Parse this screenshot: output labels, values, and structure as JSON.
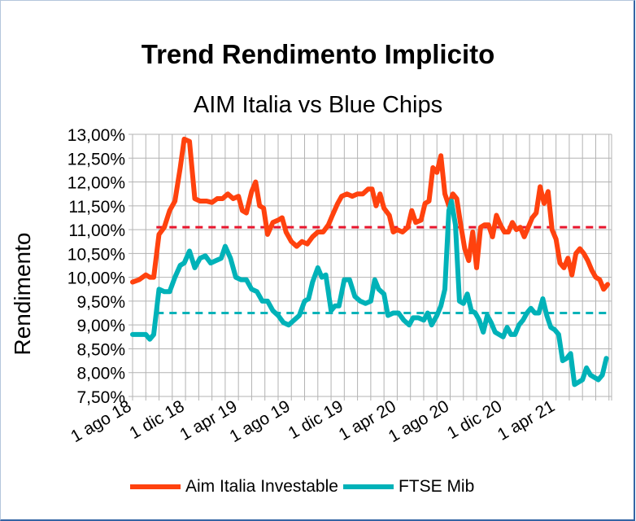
{
  "chart_data": {
    "type": "line",
    "title": "Trend Rendimento Implicito",
    "subtitle": "AIM Italia vs Blue Chips",
    "xlabel": "",
    "ylabel": "Rendimento",
    "ylim": [
      7.5,
      13.0
    ],
    "y_ticks": [
      "13,00%",
      "12,50%",
      "12,00%",
      "11,50%",
      "11,00%",
      "10,50%",
      "10,00%",
      "9,50%",
      "9,00%",
      "8,50%",
      "8,00%",
      "7,50%"
    ],
    "x_ticks": [
      "1 ago 18",
      "1 dic 18",
      "1 apr 19",
      "1 ago 19",
      "1 dic 19",
      "1 apr 20",
      "1 ago 20",
      "1 dic 20",
      "1 apr 21"
    ],
    "x_range_months_from_aug_2018": [
      0,
      36.2
    ],
    "grid": true,
    "legend_position": "bottom",
    "x_unit": "months since 1 ago 18",
    "series": [
      {
        "name": "Aim Italia Investable",
        "color": "#ff420e",
        "points": [
          [
            0,
            9.9
          ],
          [
            0.5,
            9.95
          ],
          [
            1,
            10.05
          ],
          [
            1.3,
            10.0
          ],
          [
            1.6,
            10.0
          ],
          [
            2,
            10.9
          ],
          [
            2.4,
            11.05
          ],
          [
            2.8,
            11.4
          ],
          [
            3.2,
            11.6
          ],
          [
            3.6,
            12.3
          ],
          [
            3.9,
            12.9
          ],
          [
            4.3,
            12.85
          ],
          [
            4.7,
            11.65
          ],
          [
            5.1,
            11.6
          ],
          [
            5.6,
            11.6
          ],
          [
            6.0,
            11.57
          ],
          [
            6.4,
            11.65
          ],
          [
            6.8,
            11.65
          ],
          [
            7.2,
            11.75
          ],
          [
            7.6,
            11.65
          ],
          [
            8.0,
            11.7
          ],
          [
            8.3,
            11.4
          ],
          [
            8.6,
            11.35
          ],
          [
            9.0,
            11.8
          ],
          [
            9.3,
            12.0
          ],
          [
            9.6,
            11.5
          ],
          [
            9.9,
            11.45
          ],
          [
            10.2,
            10.9
          ],
          [
            10.6,
            11.15
          ],
          [
            11.0,
            11.2
          ],
          [
            11.3,
            11.25
          ],
          [
            11.6,
            10.95
          ],
          [
            12.0,
            10.75
          ],
          [
            12.4,
            10.65
          ],
          [
            12.8,
            10.75
          ],
          [
            13.2,
            10.7
          ],
          [
            13.6,
            10.85
          ],
          [
            14.0,
            10.95
          ],
          [
            14.4,
            10.95
          ],
          [
            14.8,
            11.1
          ],
          [
            15.1,
            11.3
          ],
          [
            15.5,
            11.55
          ],
          [
            15.8,
            11.7
          ],
          [
            16.2,
            11.75
          ],
          [
            16.6,
            11.7
          ],
          [
            17.0,
            11.75
          ],
          [
            17.4,
            11.75
          ],
          [
            17.8,
            11.85
          ],
          [
            18.1,
            11.85
          ],
          [
            18.4,
            11.5
          ],
          [
            18.7,
            11.75
          ],
          [
            19.0,
            11.45
          ],
          [
            19.4,
            11.3
          ],
          [
            19.7,
            10.95
          ],
          [
            20.0,
            11.0
          ],
          [
            20.4,
            10.95
          ],
          [
            20.8,
            11.05
          ],
          [
            21.1,
            11.4
          ],
          [
            21.4,
            11.15
          ],
          [
            21.8,
            11.2
          ],
          [
            22.1,
            11.55
          ],
          [
            22.4,
            11.6
          ],
          [
            22.7,
            12.3
          ],
          [
            23.0,
            12.2
          ],
          [
            23.3,
            12.55
          ],
          [
            23.6,
            11.75
          ],
          [
            23.9,
            11.5
          ],
          [
            24.2,
            11.75
          ],
          [
            24.5,
            11.65
          ],
          [
            24.8,
            11.1
          ],
          [
            25.1,
            10.6
          ],
          [
            25.4,
            10.35
          ],
          [
            25.7,
            10.95
          ],
          [
            26.0,
            10.2
          ],
          [
            26.3,
            11.05
          ],
          [
            26.6,
            11.1
          ],
          [
            26.9,
            11.1
          ],
          [
            27.2,
            10.85
          ],
          [
            27.5,
            11.3
          ],
          [
            27.8,
            11.1
          ],
          [
            28.1,
            10.95
          ],
          [
            28.4,
            10.95
          ],
          [
            28.7,
            11.15
          ],
          [
            29.0,
            11.0
          ],
          [
            29.3,
            11.05
          ],
          [
            29.6,
            10.85
          ],
          [
            29.9,
            11.05
          ],
          [
            30.2,
            11.25
          ],
          [
            30.5,
            11.35
          ],
          [
            30.8,
            11.9
          ],
          [
            31.1,
            11.55
          ],
          [
            31.4,
            11.8
          ],
          [
            31.7,
            11.0
          ],
          [
            32.0,
            10.8
          ],
          [
            32.3,
            10.3
          ],
          [
            32.6,
            10.2
          ],
          [
            32.9,
            10.4
          ],
          [
            33.2,
            10.05
          ],
          [
            33.5,
            10.5
          ],
          [
            33.8,
            10.6
          ],
          [
            34.1,
            10.5
          ],
          [
            34.4,
            10.35
          ],
          [
            34.7,
            10.15
          ],
          [
            35.0,
            10.0
          ],
          [
            35.3,
            9.95
          ],
          [
            35.6,
            9.75
          ],
          [
            35.9,
            9.85
          ]
        ]
      },
      {
        "name": "FTSE Mib",
        "color": "#00b2b8",
        "points": [
          [
            0,
            8.8
          ],
          [
            0.5,
            8.8
          ],
          [
            1,
            8.8
          ],
          [
            1.3,
            8.7
          ],
          [
            1.6,
            8.8
          ],
          [
            2,
            9.75
          ],
          [
            2.4,
            9.7
          ],
          [
            2.8,
            9.7
          ],
          [
            3.2,
            10.0
          ],
          [
            3.6,
            10.25
          ],
          [
            3.9,
            10.3
          ],
          [
            4.3,
            10.55
          ],
          [
            4.7,
            10.2
          ],
          [
            5.1,
            10.4
          ],
          [
            5.5,
            10.45
          ],
          [
            5.9,
            10.3
          ],
          [
            6.3,
            10.35
          ],
          [
            6.7,
            10.4
          ],
          [
            7.0,
            10.65
          ],
          [
            7.4,
            10.4
          ],
          [
            7.8,
            10.0
          ],
          [
            8.2,
            9.95
          ],
          [
            8.6,
            9.95
          ],
          [
            9.0,
            9.75
          ],
          [
            9.4,
            9.7
          ],
          [
            9.8,
            9.5
          ],
          [
            10.2,
            9.5
          ],
          [
            10.6,
            9.3
          ],
          [
            11.0,
            9.2
          ],
          [
            11.4,
            9.05
          ],
          [
            11.8,
            9.0
          ],
          [
            12.2,
            9.1
          ],
          [
            12.6,
            9.2
          ],
          [
            13.0,
            9.5
          ],
          [
            13.3,
            9.55
          ],
          [
            13.6,
            9.9
          ],
          [
            14.0,
            10.2
          ],
          [
            14.3,
            10.0
          ],
          [
            14.6,
            10.05
          ],
          [
            15.0,
            9.3
          ],
          [
            15.3,
            9.4
          ],
          [
            15.6,
            9.4
          ],
          [
            16.0,
            9.95
          ],
          [
            16.4,
            9.95
          ],
          [
            16.8,
            9.6
          ],
          [
            17.2,
            9.5
          ],
          [
            17.6,
            9.45
          ],
          [
            18.0,
            9.5
          ],
          [
            18.3,
            9.95
          ],
          [
            18.6,
            9.75
          ],
          [
            19.0,
            9.65
          ],
          [
            19.3,
            9.2
          ],
          [
            19.7,
            9.25
          ],
          [
            20.1,
            9.25
          ],
          [
            20.5,
            9.1
          ],
          [
            20.9,
            9.0
          ],
          [
            21.2,
            9.15
          ],
          [
            21.6,
            9.15
          ],
          [
            22.0,
            9.1
          ],
          [
            22.3,
            9.25
          ],
          [
            22.6,
            9.0
          ],
          [
            23.0,
            9.2
          ],
          [
            23.3,
            9.4
          ],
          [
            23.6,
            9.75
          ],
          [
            23.9,
            11.4
          ],
          [
            24.1,
            11.6
          ],
          [
            24.4,
            11.1
          ],
          [
            24.7,
            9.5
          ],
          [
            25.0,
            9.45
          ],
          [
            25.3,
            9.65
          ],
          [
            25.6,
            9.3
          ],
          [
            25.9,
            9.25
          ],
          [
            26.2,
            9.1
          ],
          [
            26.5,
            8.85
          ],
          [
            26.8,
            9.2
          ],
          [
            27.1,
            9.05
          ],
          [
            27.4,
            8.85
          ],
          [
            27.7,
            8.8
          ],
          [
            28.0,
            8.75
          ],
          [
            28.3,
            8.95
          ],
          [
            28.6,
            8.8
          ],
          [
            28.9,
            8.8
          ],
          [
            29.2,
            9.0
          ],
          [
            29.5,
            9.1
          ],
          [
            29.8,
            9.25
          ],
          [
            30.1,
            9.35
          ],
          [
            30.4,
            9.25
          ],
          [
            30.7,
            9.25
          ],
          [
            31.0,
            9.55
          ],
          [
            31.3,
            9.2
          ],
          [
            31.6,
            8.95
          ],
          [
            31.9,
            8.9
          ],
          [
            32.2,
            8.8
          ],
          [
            32.5,
            8.25
          ],
          [
            32.8,
            8.3
          ],
          [
            33.1,
            8.4
          ],
          [
            33.4,
            7.75
          ],
          [
            33.7,
            7.8
          ],
          [
            34.0,
            7.85
          ],
          [
            34.3,
            8.1
          ],
          [
            34.6,
            7.95
          ],
          [
            34.9,
            7.9
          ],
          [
            35.2,
            7.85
          ],
          [
            35.5,
            7.95
          ],
          [
            35.8,
            8.3
          ]
        ]
      }
    ],
    "reference_lines": [
      {
        "series": "Aim Italia Investable",
        "value": 11.05,
        "color": "#e8162e",
        "style": "dashed"
      },
      {
        "series": "FTSE Mib",
        "value": 9.25,
        "color": "#00b2b8",
        "style": "dashed"
      }
    ]
  },
  "legend": {
    "items": [
      {
        "label": "Aim Italia Investable",
        "color": "#ff420e"
      },
      {
        "label": "FTSE Mib",
        "color": "#00b2b8"
      }
    ]
  }
}
